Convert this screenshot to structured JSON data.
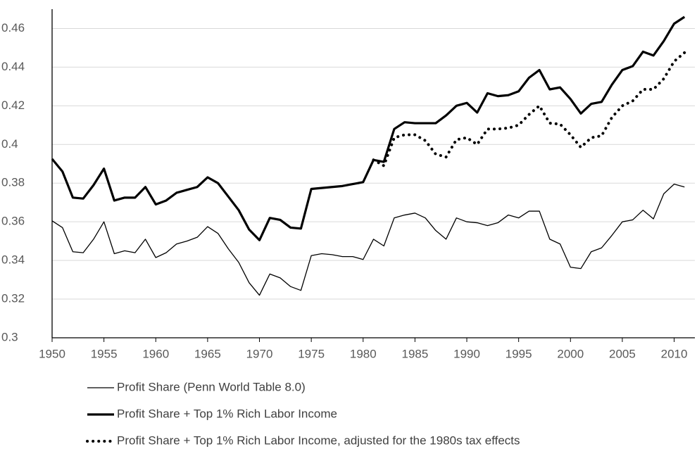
{
  "chart_data": {
    "type": "line",
    "x": [
      1950,
      1951,
      1952,
      1953,
      1954,
      1955,
      1956,
      1957,
      1958,
      1959,
      1960,
      1961,
      1962,
      1963,
      1964,
      1965,
      1966,
      1967,
      1968,
      1969,
      1970,
      1971,
      1972,
      1973,
      1974,
      1975,
      1976,
      1977,
      1978,
      1979,
      1980,
      1981,
      1982,
      1983,
      1984,
      1985,
      1986,
      1987,
      1988,
      1989,
      1990,
      1991,
      1992,
      1993,
      1994,
      1995,
      1996,
      1997,
      1998,
      1999,
      2000,
      2001,
      2002,
      2003,
      2004,
      2005,
      2006,
      2007,
      2008,
      2009,
      2010,
      2011
    ],
    "series": [
      {
        "name": "Profit Share (Penn World Table 8.0)",
        "color": "#000000",
        "values": [
          0.3605,
          0.357,
          0.3445,
          0.344,
          0.351,
          0.36,
          0.3435,
          0.345,
          0.344,
          0.351,
          0.3415,
          0.344,
          0.3485,
          0.35,
          0.352,
          0.3575,
          0.354,
          0.346,
          0.339,
          0.3285,
          0.322,
          0.333,
          0.331,
          0.3265,
          0.3245,
          0.3425,
          0.3435,
          0.343,
          0.342,
          0.342,
          0.3405,
          0.351,
          0.3475,
          0.362,
          0.3635,
          0.3645,
          0.362,
          0.3555,
          0.351,
          0.362,
          0.36,
          0.3595,
          0.358,
          0.3595,
          0.3635,
          0.362,
          0.3655,
          0.3655,
          0.351,
          0.3485,
          0.3365,
          0.3358,
          0.3445,
          0.3465,
          0.353,
          0.36,
          0.361,
          0.366,
          0.3615,
          0.3745,
          0.3795,
          0.378
        ]
      },
      {
        "name": "Profit Share + Top 1% Rich Labor Income",
        "color": "#000000",
        "values": [
          0.3925,
          0.386,
          0.3725,
          0.372,
          0.379,
          0.3875,
          0.371,
          0.3725,
          0.3725,
          0.378,
          0.369,
          0.371,
          0.375,
          0.3765,
          0.378,
          0.383,
          0.38,
          0.373,
          0.366,
          0.356,
          0.3505,
          0.362,
          0.361,
          0.357,
          0.3565,
          0.377,
          0.3775,
          0.378,
          0.3785,
          0.3795,
          0.3805,
          0.392,
          0.391,
          0.408,
          0.4115,
          0.411,
          0.411,
          0.411,
          0.415,
          0.42,
          0.4215,
          0.4165,
          0.4265,
          0.425,
          0.4255,
          0.4275,
          0.4345,
          0.4385,
          0.4285,
          0.4295,
          0.4235,
          0.416,
          0.421,
          0.422,
          0.431,
          0.4385,
          0.4405,
          0.448,
          0.446,
          0.4535,
          0.4625,
          0.466
        ]
      },
      {
        "name": "Profit Share + Top 1% Rich Labor Income, adjusted for the 1980s tax effects",
        "color": "#000000",
        "values": [
          null,
          null,
          null,
          null,
          null,
          null,
          null,
          null,
          null,
          null,
          null,
          null,
          null,
          null,
          null,
          null,
          null,
          null,
          null,
          null,
          null,
          null,
          null,
          null,
          null,
          null,
          null,
          null,
          null,
          null,
          null,
          0.392,
          0.389,
          0.4035,
          0.405,
          0.405,
          0.402,
          0.395,
          0.3935,
          0.4025,
          0.4035,
          0.4,
          0.408,
          0.408,
          0.4085,
          0.41,
          0.4155,
          0.42,
          0.411,
          0.4105,
          0.405,
          0.3985,
          0.4035,
          0.4045,
          0.414,
          0.42,
          0.4225,
          0.4285,
          0.4285,
          0.434,
          0.443,
          0.4475
        ]
      }
    ],
    "xlim": [
      1950,
      2012
    ],
    "xticks": [
      1950,
      1955,
      1960,
      1965,
      1970,
      1975,
      1980,
      1985,
      1990,
      1995,
      2000,
      2005,
      2010
    ],
    "ylim": [
      0.3,
      0.47
    ],
    "yticks": [
      0.3,
      0.32,
      0.34,
      0.36,
      0.38,
      0.4,
      0.42,
      0.44,
      0.46
    ],
    "grid": true
  }
}
